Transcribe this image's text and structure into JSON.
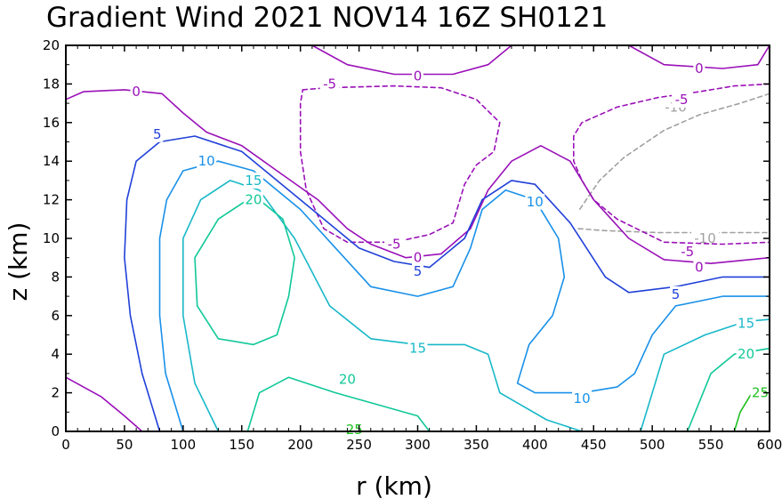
{
  "chart_data": {
    "type": "contour",
    "title": "Gradient Wind 2021 NOV14 16Z  SH0121",
    "xlabel": "r (km)",
    "ylabel": "z (km)",
    "xlim": [
      0,
      600
    ],
    "ylim": [
      0,
      20
    ],
    "x_ticks": [
      0,
      50,
      100,
      150,
      200,
      250,
      300,
      350,
      400,
      450,
      500,
      550,
      600
    ],
    "y_ticks": [
      0,
      2,
      4,
      6,
      8,
      10,
      12,
      14,
      16,
      18,
      20
    ],
    "grid": false,
    "levels": [
      {
        "value": -10,
        "label": "-10",
        "color": "#a0a0a0",
        "dashed": true,
        "lines": [
          [
            [
              437,
              10.5
            ],
            [
              460,
              10.4
            ],
            [
              505,
              10.3
            ],
            [
              545,
              10.3
            ],
            [
              600,
              10.3
            ]
          ],
          [
            [
              600,
              17.5
            ],
            [
              575,
              17.0
            ],
            [
              540,
              16.4
            ],
            [
              510,
              15.6
            ],
            [
              476,
              14.2
            ],
            [
              455,
              13.0
            ],
            [
              437,
              11.4
            ]
          ]
        ],
        "labels": [
          [
            545,
            10.0
          ],
          [
            520,
            16.8
          ]
        ]
      },
      {
        "value": -5,
        "label": "-5",
        "color": "#9a10b8",
        "dashed": true,
        "lines": [
          [
            [
              202,
              17.7
            ],
            [
              222,
              17.8
            ],
            [
              280,
              17.9
            ],
            [
              320,
              17.8
            ],
            [
              350,
              17.2
            ],
            [
              370,
              16.0
            ],
            [
              365,
              14.5
            ],
            [
              350,
              13.8
            ],
            [
              340,
              12.8
            ],
            [
              330,
              10.8
            ],
            [
              310,
              10.2
            ],
            [
              280,
              9.8
            ],
            [
              240,
              9.8
            ],
            [
              220,
              10.5
            ],
            [
              205,
              12.5
            ],
            [
              200,
              14.5
            ],
            [
              200,
              17.0
            ],
            [
              202,
              17.7
            ]
          ],
          [
            [
              600,
              18.0
            ],
            [
              570,
              17.9
            ],
            [
              540,
              17.6
            ],
            [
              505,
              17.3
            ],
            [
              470,
              16.8
            ],
            [
              440,
              16.0
            ],
            [
              433,
              15.3
            ],
            [
              433,
              14.0
            ],
            [
              440,
              13.0
            ],
            [
              450,
              12.0
            ],
            [
              470,
              11.0
            ],
            [
              510,
              9.8
            ],
            [
              560,
              9.7
            ],
            [
              600,
              9.8
            ]
          ]
        ],
        "labels": [
          [
            225,
            18.0
          ],
          [
            525,
            17.2
          ],
          [
            280,
            9.7
          ],
          [
            530,
            9.3
          ]
        ]
      },
      {
        "value": 0,
        "label": "0",
        "color": "#9a10b8",
        "dashed": false,
        "lines": [
          [
            [
              0,
              17.2
            ],
            [
              15,
              17.6
            ],
            [
              50,
              17.7
            ],
            [
              82,
              17.5
            ],
            [
              100,
              16.5
            ],
            [
              120,
              15.5
            ],
            [
              150,
              14.8
            ],
            [
              180,
              13.5
            ],
            [
              215,
              12.0
            ],
            [
              240,
              10.5
            ],
            [
              260,
              9.7
            ],
            [
              290,
              9.0
            ],
            [
              320,
              9.2
            ],
            [
              345,
              10.5
            ],
            [
              360,
              12.5
            ],
            [
              380,
              14.0
            ],
            [
              405,
              14.8
            ],
            [
              430,
              14.0
            ],
            [
              450,
              12.0
            ],
            [
              480,
              10.0
            ],
            [
              510,
              8.9
            ],
            [
              550,
              8.7
            ],
            [
              600,
              9.0
            ]
          ],
          [
            [
              210,
              20.0
            ],
            [
              240,
              19.0
            ],
            [
              280,
              18.5
            ],
            [
              330,
              18.5
            ],
            [
              360,
              19.0
            ],
            [
              380,
              20.0
            ]
          ],
          [
            [
              480,
              20.0
            ],
            [
              510,
              19.0
            ],
            [
              560,
              18.8
            ],
            [
              590,
              19.0
            ],
            [
              600,
              20.0
            ]
          ],
          [
            [
              0,
              2.8
            ],
            [
              30,
              1.8
            ],
            [
              50,
              0.8
            ],
            [
              65,
              0.0
            ]
          ]
        ],
        "labels": [
          [
            60,
            17.6
          ],
          [
            300,
            18.4
          ],
          [
            540,
            18.8
          ],
          [
            300,
            9.0
          ],
          [
            540,
            8.5
          ]
        ]
      },
      {
        "value": 5,
        "label": "5",
        "color": "#2040d8",
        "dashed": false,
        "lines": [
          [
            [
              80,
              0.0
            ],
            [
              65,
              3.0
            ],
            [
              55,
              6.0
            ],
            [
              50,
              9.0
            ],
            [
              52,
              12.0
            ],
            [
              60,
              14.0
            ],
            [
              80,
              15.0
            ],
            [
              110,
              15.3
            ],
            [
              150,
              14.5
            ],
            [
              180,
              13.0
            ],
            [
              220,
              11.0
            ],
            [
              250,
              9.5
            ],
            [
              280,
              8.8
            ],
            [
              310,
              8.5
            ],
            [
              340,
              10.0
            ],
            [
              355,
              12.0
            ],
            [
              380,
              13.0
            ],
            [
              400,
              12.8
            ],
            [
              430,
              10.8
            ],
            [
              460,
              8.0
            ],
            [
              480,
              7.2
            ],
            [
              520,
              7.5
            ],
            [
              560,
              8.0
            ],
            [
              600,
              8.0
            ]
          ]
        ],
        "labels": [
          [
            78,
            15.4
          ],
          [
            300,
            8.3
          ],
          [
            520,
            7.1
          ]
        ]
      },
      {
        "value": 10,
        "label": "10",
        "color": "#1890e8",
        "dashed": false,
        "lines": [
          [
            [
              100,
              0.0
            ],
            [
              85,
              3.0
            ],
            [
              80,
              6.0
            ],
            [
              80,
              10.0
            ],
            [
              86,
              12.0
            ],
            [
              100,
              13.5
            ],
            [
              130,
              14.0
            ],
            [
              160,
              13.5
            ],
            [
              200,
              11.5
            ],
            [
              230,
              9.5
            ],
            [
              260,
              7.5
            ],
            [
              300,
              7.0
            ],
            [
              330,
              7.5
            ],
            [
              345,
              9.5
            ],
            [
              355,
              11.5
            ],
            [
              375,
              12.5
            ],
            [
              400,
              12.0
            ],
            [
              420,
              10.0
            ],
            [
              425,
              8.0
            ],
            [
              415,
              6.0
            ],
            [
              395,
              4.5
            ],
            [
              385,
              2.5
            ],
            [
              400,
              2.0
            ],
            [
              440,
              2.0
            ],
            [
              470,
              2.3
            ],
            [
              485,
              3.0
            ],
            [
              500,
              5.0
            ],
            [
              520,
              6.5
            ],
            [
              560,
              7.0
            ],
            [
              600,
              7.0
            ]
          ]
        ],
        "labels": [
          [
            120,
            14.0
          ],
          [
            400,
            11.9
          ],
          [
            440,
            1.7
          ]
        ]
      },
      {
        "value": 15,
        "label": "15",
        "color": "#18b8c8",
        "dashed": false,
        "lines": [
          [
            [
              130,
              0.0
            ],
            [
              110,
              2.5
            ],
            [
              100,
              6.0
            ],
            [
              100,
              10.0
            ],
            [
              115,
              12.0
            ],
            [
              140,
              13.0
            ],
            [
              165,
              12.5
            ],
            [
              195,
              10.0
            ],
            [
              225,
              6.5
            ],
            [
              260,
              4.8
            ],
            [
              300,
              4.5
            ],
            [
              340,
              4.5
            ],
            [
              360,
              4.0
            ],
            [
              370,
              2.0
            ],
            [
              410,
              0.6
            ],
            [
              440,
              0.0
            ]
          ],
          [
            [
              600,
              5.8
            ],
            [
              580,
              5.7
            ],
            [
              545,
              5.0
            ],
            [
              510,
              4.0
            ],
            [
              500,
              2.0
            ],
            [
              490,
              0.0
            ]
          ]
        ],
        "labels": [
          [
            160,
            13.0
          ],
          [
            300,
            4.3
          ],
          [
            580,
            5.6
          ]
        ]
      },
      {
        "value": 20,
        "label": "20",
        "color": "#10c898",
        "dashed": false,
        "lines": [
          [
            [
              155,
              12.0
            ],
            [
              130,
              11.0
            ],
            [
              110,
              9.0
            ],
            [
              112,
              6.5
            ],
            [
              130,
              4.8
            ],
            [
              160,
              4.5
            ],
            [
              180,
              5.0
            ],
            [
              190,
              7.0
            ],
            [
              195,
              9.0
            ],
            [
              185,
              11.0
            ],
            [
              165,
              12.0
            ],
            [
              155,
              12.0
            ]
          ],
          [
            [
              155,
              0.0
            ],
            [
              165,
              2.0
            ],
            [
              190,
              2.8
            ],
            [
              230,
              2.0
            ],
            [
              300,
              0.8
            ],
            [
              310,
              0.0
            ]
          ],
          [
            [
              600,
              4.3
            ],
            [
              570,
              4.0
            ],
            [
              550,
              3.0
            ],
            [
              540,
              1.5
            ],
            [
              530,
              0.0
            ]
          ]
        ],
        "labels": [
          [
            160,
            12.0
          ],
          [
            240,
            2.7
          ],
          [
            580,
            4.0
          ]
        ]
      },
      {
        "value": 25,
        "label": "25",
        "color": "#20c020",
        "dashed": false,
        "lines": [
          [
            [
              240,
              0.0
            ],
            [
              245,
              0.2
            ],
            [
              250,
              0.0
            ]
          ],
          [
            [
              570,
              0.0
            ],
            [
              575,
              1.0
            ],
            [
              585,
              2.0
            ],
            [
              600,
              2.2
            ]
          ]
        ],
        "labels": [
          [
            246,
            0.1
          ],
          [
            592,
            2.0
          ]
        ]
      }
    ]
  }
}
